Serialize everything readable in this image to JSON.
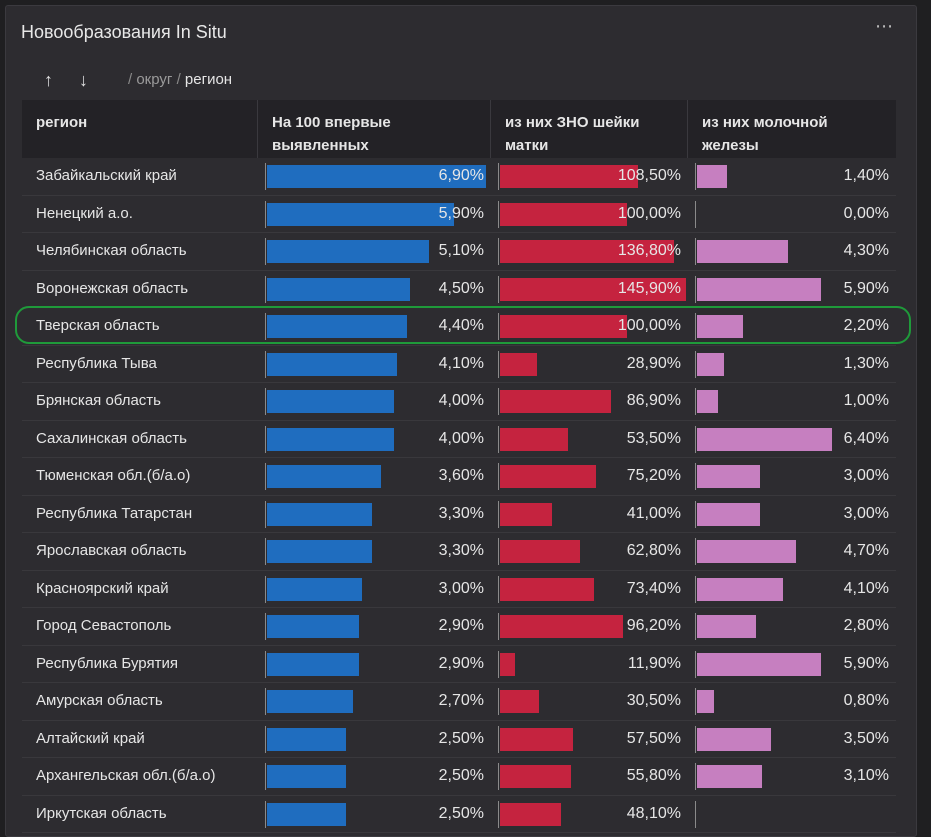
{
  "title": "Новообразования In Situ",
  "more_icon": "⋯",
  "sort_up": "↑",
  "sort_down": "↓",
  "breadcrumbs": {
    "sep1": "/",
    "item1": "округ",
    "sep2": "/",
    "item2": "регион"
  },
  "columns": [
    "регион",
    "На 100 впервые выявленных",
    "из них ЗНО шейки матки",
    "из них молочной железы"
  ],
  "colors": {
    "blue": "#1f6dbf",
    "red": "#c5233f",
    "pink": "#c67fc0",
    "highlight": "#1f9a3a"
  },
  "rows": [
    {
      "region": "Забайкальский край",
      "first": "6,90%",
      "cervix": "108,50%",
      "breast": "1,40%",
      "f": 6.9,
      "c": 108.5,
      "b": 1.4
    },
    {
      "region": "Ненецкий а.о.",
      "first": "5,90%",
      "cervix": "100,00%",
      "breast": "0,00%",
      "f": 5.9,
      "c": 100.0,
      "b": 0.0
    },
    {
      "region": "Челябинская область",
      "first": "5,10%",
      "cervix": "136,80%",
      "breast": "4,30%",
      "f": 5.1,
      "c": 136.8,
      "b": 4.3
    },
    {
      "region": "Воронежская область",
      "first": "4,50%",
      "cervix": "145,90%",
      "breast": "5,90%",
      "f": 4.5,
      "c": 145.9,
      "b": 5.9
    },
    {
      "region": "Тверская область",
      "first": "4,40%",
      "cervix": "100,00%",
      "breast": "2,20%",
      "f": 4.4,
      "c": 100.0,
      "b": 2.2
    },
    {
      "region": "Республика Тыва",
      "first": "4,10%",
      "cervix": "28,90%",
      "breast": "1,30%",
      "f": 4.1,
      "c": 28.9,
      "b": 1.3
    },
    {
      "region": "Брянская область",
      "first": "4,00%",
      "cervix": "86,90%",
      "breast": "1,00%",
      "f": 4.0,
      "c": 86.9,
      "b": 1.0
    },
    {
      "region": "Сахалинская область",
      "first": "4,00%",
      "cervix": "53,50%",
      "breast": "6,40%",
      "f": 4.0,
      "c": 53.5,
      "b": 6.4
    },
    {
      "region": "Тюменская обл.(б/а.о)",
      "first": "3,60%",
      "cervix": "75,20%",
      "breast": "3,00%",
      "f": 3.6,
      "c": 75.2,
      "b": 3.0
    },
    {
      "region": "Республика Татарстан",
      "first": "3,30%",
      "cervix": "41,00%",
      "breast": "3,00%",
      "f": 3.3,
      "c": 41.0,
      "b": 3.0
    },
    {
      "region": "Ярославская область",
      "first": "3,30%",
      "cervix": "62,80%",
      "breast": "4,70%",
      "f": 3.3,
      "c": 62.8,
      "b": 4.7
    },
    {
      "region": "Красноярский край",
      "first": "3,00%",
      "cervix": "73,40%",
      "breast": "4,10%",
      "f": 3.0,
      "c": 73.4,
      "b": 4.1
    },
    {
      "region": "Город Севастополь",
      "first": "2,90%",
      "cervix": "96,20%",
      "breast": "2,80%",
      "f": 2.9,
      "c": 96.2,
      "b": 2.8
    },
    {
      "region": "Республика Бурятия",
      "first": "2,90%",
      "cervix": "11,90%",
      "breast": "5,90%",
      "f": 2.9,
      "c": 11.9,
      "b": 5.9
    },
    {
      "region": "Амурская область",
      "first": "2,70%",
      "cervix": "30,50%",
      "breast": "0,80%",
      "f": 2.7,
      "c": 30.5,
      "b": 0.8
    },
    {
      "region": "Алтайский край",
      "first": "2,50%",
      "cervix": "57,50%",
      "breast": "3,50%",
      "f": 2.5,
      "c": 57.5,
      "b": 3.5
    },
    {
      "region": "Архангельская обл.(б/а.о)",
      "first": "2,50%",
      "cervix": "55,80%",
      "breast": "3,10%",
      "f": 2.5,
      "c": 55.8,
      "b": 3.1
    },
    {
      "region": "Иркутская область",
      "first": "2,50%",
      "cervix": "48,10%",
      "breast": "",
      "f": 2.5,
      "c": 48.1,
      "b": 0
    }
  ]
}
